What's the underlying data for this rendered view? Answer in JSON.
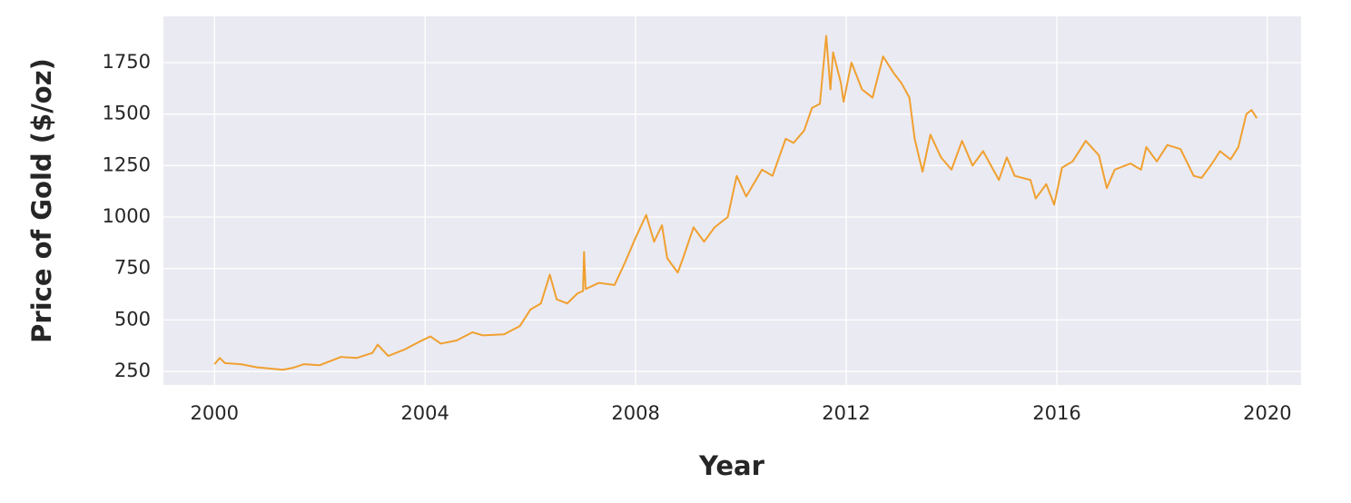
{
  "chart_data": {
    "type": "line",
    "x_label": "Year",
    "y_label": "Price of Gold ($/oz)",
    "x": [
      2000.0,
      2000.1,
      2000.2,
      2000.5,
      2000.8,
      2001.0,
      2001.3,
      2001.5,
      2001.7,
      2002.0,
      2002.4,
      2002.7,
      2003.0,
      2003.1,
      2003.3,
      2003.6,
      2003.9,
      2004.1,
      2004.3,
      2004.6,
      2004.9,
      2005.1,
      2005.5,
      2005.8,
      2006.0,
      2006.2,
      2006.37,
      2006.5,
      2006.7,
      2006.9,
      2007.0,
      2007.02,
      2007.05,
      2007.3,
      2007.6,
      2007.8,
      2008.0,
      2008.2,
      2008.35,
      2008.5,
      2008.6,
      2008.8,
      2008.9,
      2009.1,
      2009.3,
      2009.5,
      2009.75,
      2009.92,
      2010.1,
      2010.4,
      2010.6,
      2010.85,
      2011.0,
      2011.2,
      2011.35,
      2011.5,
      2011.62,
      2011.7,
      2011.75,
      2011.9,
      2011.95,
      2012.1,
      2012.3,
      2012.5,
      2012.7,
      2012.9,
      2013.05,
      2013.2,
      2013.3,
      2013.45,
      2013.6,
      2013.8,
      2014.0,
      2014.2,
      2014.4,
      2014.6,
      2014.9,
      2015.05,
      2015.2,
      2015.5,
      2015.6,
      2015.8,
      2015.95,
      2016.1,
      2016.3,
      2016.55,
      2016.8,
      2016.95,
      2017.1,
      2017.4,
      2017.6,
      2017.7,
      2017.9,
      2018.1,
      2018.35,
      2018.6,
      2018.75,
      2018.95,
      2019.1,
      2019.3,
      2019.45,
      2019.6,
      2019.7,
      2019.8
    ],
    "values": [
      285,
      315,
      290,
      285,
      270,
      265,
      258,
      268,
      285,
      280,
      320,
      315,
      340,
      380,
      325,
      355,
      395,
      420,
      385,
      400,
      440,
      425,
      430,
      470,
      550,
      580,
      720,
      600,
      580,
      630,
      640,
      830,
      650,
      680,
      670,
      780,
      900,
      1010,
      880,
      960,
      800,
      730,
      800,
      950,
      880,
      950,
      1000,
      1200,
      1100,
      1230,
      1200,
      1380,
      1360,
      1420,
      1530,
      1550,
      1880,
      1620,
      1800,
      1650,
      1560,
      1750,
      1620,
      1580,
      1780,
      1700,
      1650,
      1580,
      1380,
      1220,
      1400,
      1290,
      1230,
      1370,
      1250,
      1320,
      1180,
      1290,
      1200,
      1180,
      1090,
      1160,
      1060,
      1240,
      1270,
      1370,
      1300,
      1140,
      1230,
      1260,
      1230,
      1340,
      1270,
      1350,
      1330,
      1200,
      1190,
      1260,
      1320,
      1280,
      1340,
      1500,
      1520,
      1480
    ],
    "color": "#f0a030",
    "xlim": [
      1999.03,
      2020.64
    ],
    "xticks": [
      2000,
      2004,
      2008,
      2012,
      2016,
      2020
    ],
    "ylim": [
      184,
      1975
    ],
    "yticks": [
      250,
      500,
      750,
      1000,
      1250,
      1500,
      1750
    ],
    "grid": true
  }
}
